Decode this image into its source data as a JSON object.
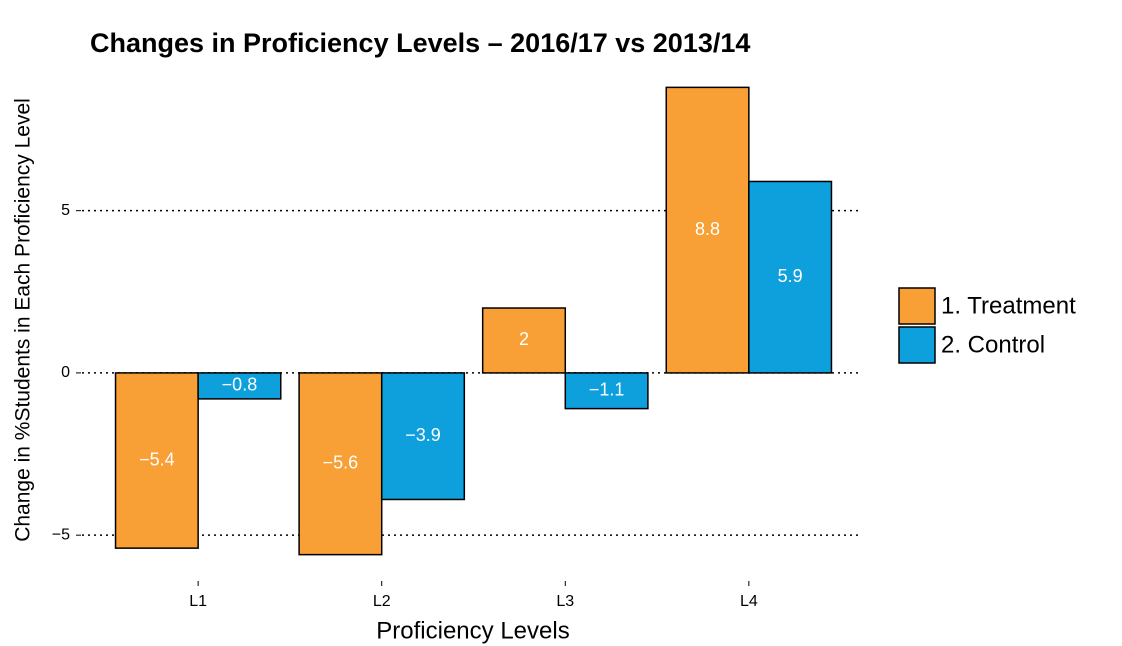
{
  "chart_data": {
    "type": "bar",
    "title": "Changes in Proficiency Levels – 2016/17 vs 2013/14",
    "x_label": "Proficiency Levels",
    "y_label": "Change in %Students in Each Proficiency Level",
    "categories": [
      "L1",
      "L2",
      "L3",
      "L4"
    ],
    "series": [
      {
        "name": "1. Treatment",
        "color": "#f8a035",
        "values": [
          -5.4,
          -5.6,
          2,
          8.8
        ],
        "value_labels": [
          "−5.4",
          "−5.6",
          "2",
          "8.8"
        ]
      },
      {
        "name": "2. Control",
        "color": "#0da0dc",
        "values": [
          -0.8,
          -3.9,
          -1.1,
          5.9
        ],
        "value_labels": [
          "−0.8",
          "−3.9",
          "−1.1",
          "5.9"
        ]
      }
    ],
    "ylim": [
      -6.32,
      9.52
    ],
    "yticks": [
      {
        "value": -5,
        "label": "−5"
      },
      0,
      5
    ],
    "grid": true
  }
}
